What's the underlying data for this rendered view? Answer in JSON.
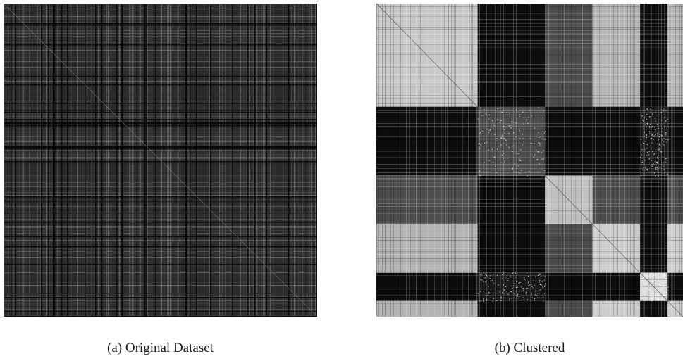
{
  "chart_data": [
    {
      "type": "heatmap",
      "colormap": "grayscale",
      "caption": "(a) Original Dataset",
      "ordering": "unordered",
      "base_level": 0.3,
      "line_density": 0.55,
      "bright_speckle_density": 0.22,
      "diagonal": true
    },
    {
      "type": "heatmap",
      "colormap": "grayscale",
      "caption": "(b) Clustered",
      "ordering": "block-clustered",
      "diagonal": true,
      "cluster_fractions": [
        0.33,
        0.22,
        0.155,
        0.155,
        0.09,
        0.05
      ],
      "block_brightness": [
        [
          0.78,
          0.05,
          0.3,
          0.7,
          0.05,
          0.7
        ],
        [
          0.05,
          0.3,
          0.05,
          0.05,
          0.1,
          0.05
        ],
        [
          0.3,
          0.05,
          0.75,
          0.3,
          0.05,
          0.3
        ],
        [
          0.7,
          0.05,
          0.3,
          0.8,
          0.05,
          0.8
        ],
        [
          0.05,
          0.1,
          0.05,
          0.05,
          0.85,
          0.05
        ],
        [
          0.7,
          0.05,
          0.3,
          0.8,
          0.05,
          0.8
        ]
      ]
    }
  ]
}
